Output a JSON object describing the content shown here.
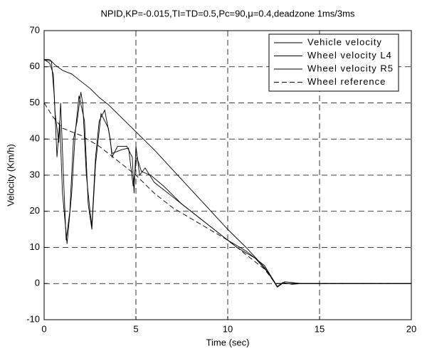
{
  "chart_data": {
    "type": "line",
    "title": "NPID,KP=-0.015,TI=TD=0.5,Pc=90,μ=0.4,deadzone 1ms/3ms",
    "x_label": "Time (sec)",
    "y_label": "Velocity (Km/h)",
    "xlim": [
      0,
      20
    ],
    "xticks": [
      0,
      5,
      10,
      15,
      20
    ],
    "ylim": [
      -10,
      70
    ],
    "yticks": [
      -10,
      0,
      10,
      20,
      30,
      40,
      50,
      60,
      70
    ],
    "grid": true,
    "legend": "upper-right",
    "series": [
      {
        "name": "Vehicle velocity",
        "color": "#000000",
        "style": "solid",
        "x": [
          0,
          0.3,
          0.6,
          1,
          1.5,
          2,
          2.5,
          3,
          3.5,
          4,
          5,
          6,
          7,
          8,
          9,
          10,
          11,
          12,
          12.6,
          13,
          14,
          20
        ],
        "values": [
          62,
          62,
          60.5,
          59,
          58,
          56,
          54,
          51.5,
          49.5,
          47,
          42,
          37,
          31.5,
          26,
          20.5,
          15,
          10,
          4.5,
          0,
          0,
          0,
          0
        ]
      },
      {
        "name": "Wheel velocity L4",
        "color": "#000000",
        "style": "solid",
        "x": [
          0,
          0.3,
          0.5,
          0.6,
          0.8,
          0.9,
          1.05,
          1.2,
          1.4,
          1.6,
          1.8,
          2,
          2.1,
          2.3,
          2.5,
          2.6,
          2.8,
          3,
          3.3,
          3.6,
          3.7,
          4,
          4.5,
          4.8,
          4.9,
          5,
          5.2,
          5.5,
          6,
          7,
          8,
          9,
          10,
          11,
          12,
          12.7,
          13,
          13.5,
          14,
          20
        ],
        "values": [
          62,
          61,
          58,
          47,
          39,
          50,
          30,
          12,
          20,
          40,
          45,
          53,
          50,
          30,
          20,
          16,
          35,
          45,
          48,
          40,
          35,
          38,
          38,
          35,
          25,
          38,
          30,
          32,
          28,
          24,
          20,
          16,
          12,
          9,
          5,
          -0.8,
          0.3,
          -0.2,
          0,
          0
        ]
      },
      {
        "name": "Wheel velocity R5",
        "color": "#000000",
        "style": "solid",
        "x": [
          0,
          0.4,
          0.55,
          0.7,
          0.85,
          1.0,
          1.25,
          1.5,
          1.7,
          1.9,
          2.2,
          2.4,
          2.6,
          2.8,
          3.1,
          3.5,
          3.7,
          4.2,
          4.6,
          4.85,
          5.05,
          5.3,
          5.8,
          6.5,
          7.5,
          8.5,
          9.5,
          10.5,
          11.5,
          12.2,
          12.7,
          13.1,
          14,
          20
        ],
        "values": [
          62,
          61.5,
          52,
          35,
          45,
          25,
          11,
          25,
          42,
          52,
          45,
          22,
          15,
          33,
          47,
          43,
          36,
          37,
          37.5,
          27,
          35,
          31,
          30,
          27,
          22,
          18,
          14,
          10,
          7,
          3,
          -1,
          0.5,
          0,
          0
        ]
      },
      {
        "name": "Wheel reference",
        "color": "#000000",
        "style": "dashed",
        "x": [
          0,
          0.5,
          1,
          2,
          3,
          4,
          5,
          6,
          7,
          8,
          9,
          10,
          11,
          12,
          12.6,
          20
        ],
        "values": [
          50,
          46,
          43,
          41,
          38,
          34,
          30,
          25,
          21,
          18,
          15,
          12,
          8,
          4,
          0,
          0
        ]
      }
    ]
  }
}
